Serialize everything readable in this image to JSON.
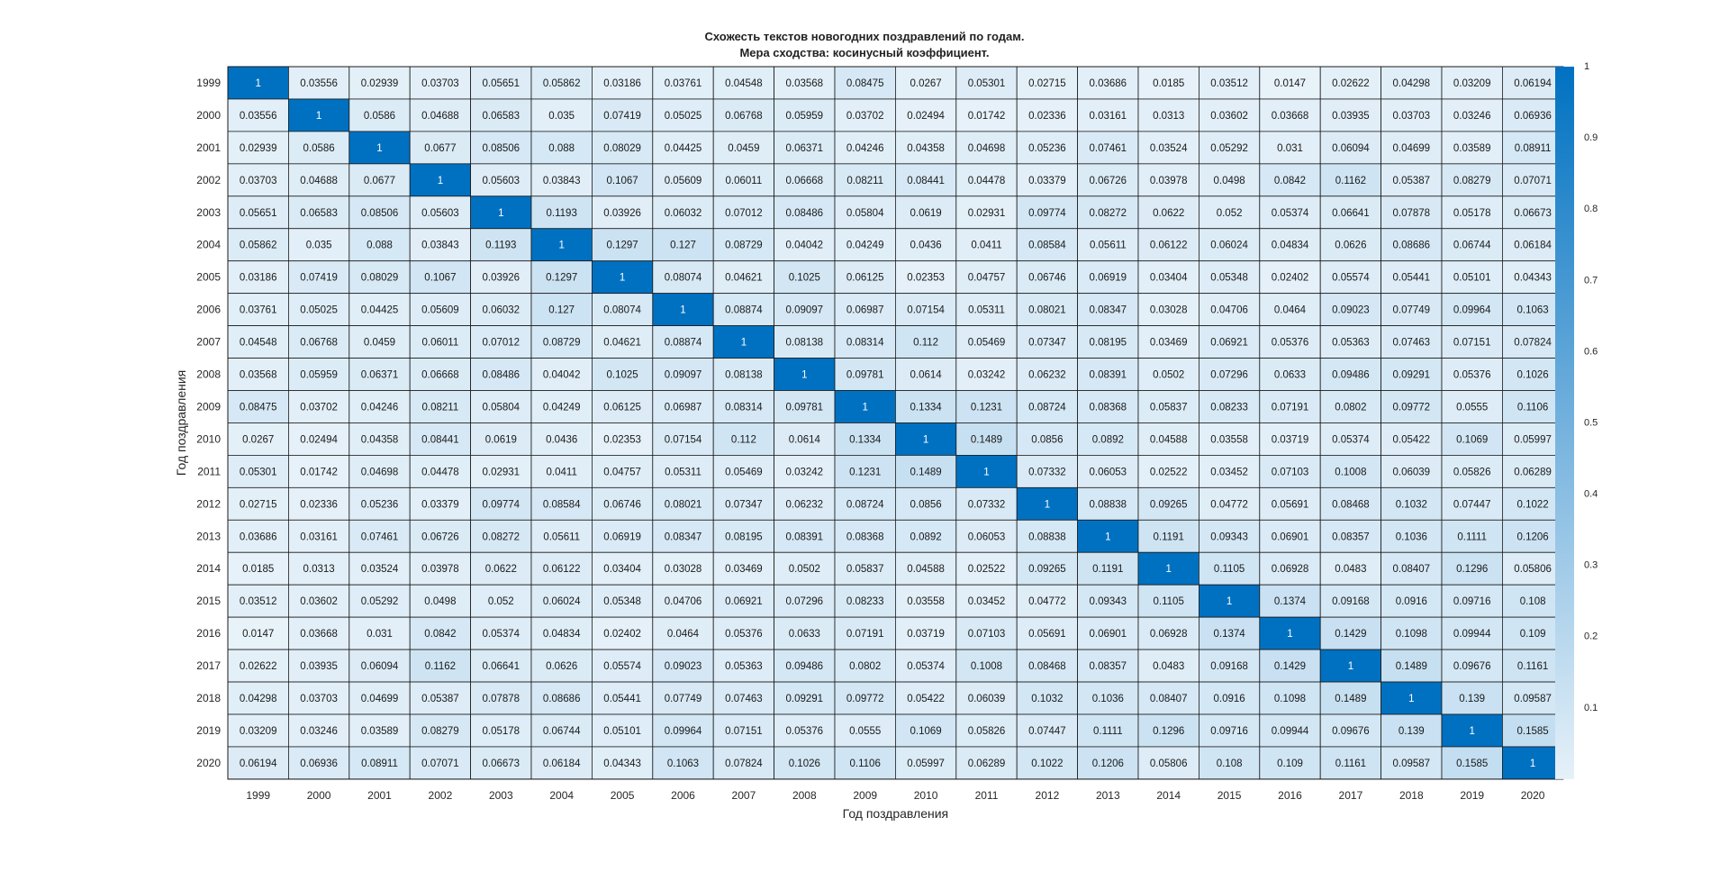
{
  "chart_data": {
    "type": "heatmap",
    "title": "Схожесть текстов новогодних поздравлений по годам.",
    "subtitle": "Мера сходства: косинусный коэффициент.",
    "xlabel": "Год поздравления",
    "ylabel": "Год поздравления",
    "colormap": {
      "low": "#ffffff",
      "high": "#0071c1"
    },
    "grid": true,
    "colorbar": {
      "ticks": [
        0.1,
        0.2,
        0.3,
        0.4,
        0.5,
        0.6,
        0.7,
        0.8,
        0.9,
        1
      ],
      "tick_labels": [
        "0.1",
        "0.2",
        "0.3",
        "0.4",
        "0.5",
        "0.6",
        "0.7",
        "0.8",
        "0.9",
        "1"
      ],
      "range": [
        0,
        1
      ],
      "placement": "right"
    },
    "x": [
      "1999",
      "2000",
      "2001",
      "2002",
      "2003",
      "2004",
      "2005",
      "2006",
      "2007",
      "2008",
      "2009",
      "2010",
      "2011",
      "2012",
      "2013",
      "2014",
      "2015",
      "2016",
      "2017",
      "2018",
      "2019",
      "2020"
    ],
    "y": [
      "1999",
      "2000",
      "2001",
      "2002",
      "2003",
      "2004",
      "2005",
      "2006",
      "2007",
      "2008",
      "2009",
      "2010",
      "2011",
      "2012",
      "2013",
      "2014",
      "2015",
      "2016",
      "2017",
      "2018",
      "2019",
      "2020"
    ],
    "values": [
      [
        "1",
        "0.03556",
        "0.02939",
        "0.03703",
        "0.05651",
        "0.05862",
        "0.03186",
        "0.03761",
        "0.04548",
        "0.03568",
        "0.08475",
        "0.0267",
        "0.05301",
        "0.02715",
        "0.03686",
        "0.0185",
        "0.03512",
        "0.0147",
        "0.02622",
        "0.04298",
        "0.03209",
        "0.06194"
      ],
      [
        "0.03556",
        "1",
        "0.0586",
        "0.04688",
        "0.06583",
        "0.035",
        "0.07419",
        "0.05025",
        "0.06768",
        "0.05959",
        "0.03702",
        "0.02494",
        "0.01742",
        "0.02336",
        "0.03161",
        "0.0313",
        "0.03602",
        "0.03668",
        "0.03935",
        "0.03703",
        "0.03246",
        "0.06936"
      ],
      [
        "0.02939",
        "0.0586",
        "1",
        "0.0677",
        "0.08506",
        "0.088",
        "0.08029",
        "0.04425",
        "0.0459",
        "0.06371",
        "0.04246",
        "0.04358",
        "0.04698",
        "0.05236",
        "0.07461",
        "0.03524",
        "0.05292",
        "0.031",
        "0.06094",
        "0.04699",
        "0.03589",
        "0.08911"
      ],
      [
        "0.03703",
        "0.04688",
        "0.0677",
        "1",
        "0.05603",
        "0.03843",
        "0.1067",
        "0.05609",
        "0.06011",
        "0.06668",
        "0.08211",
        "0.08441",
        "0.04478",
        "0.03379",
        "0.06726",
        "0.03978",
        "0.0498",
        "0.0842",
        "0.1162",
        "0.05387",
        "0.08279",
        "0.07071"
      ],
      [
        "0.05651",
        "0.06583",
        "0.08506",
        "0.05603",
        "1",
        "0.1193",
        "0.03926",
        "0.06032",
        "0.07012",
        "0.08486",
        "0.05804",
        "0.0619",
        "0.02931",
        "0.09774",
        "0.08272",
        "0.0622",
        "0.052",
        "0.05374",
        "0.06641",
        "0.07878",
        "0.05178",
        "0.06673"
      ],
      [
        "0.05862",
        "0.035",
        "0.088",
        "0.03843",
        "0.1193",
        "1",
        "0.1297",
        "0.127",
        "0.08729",
        "0.04042",
        "0.04249",
        "0.0436",
        "0.0411",
        "0.08584",
        "0.05611",
        "0.06122",
        "0.06024",
        "0.04834",
        "0.0626",
        "0.08686",
        "0.06744",
        "0.06184"
      ],
      [
        "0.03186",
        "0.07419",
        "0.08029",
        "0.1067",
        "0.03926",
        "0.1297",
        "1",
        "0.08074",
        "0.04621",
        "0.1025",
        "0.06125",
        "0.02353",
        "0.04757",
        "0.06746",
        "0.06919",
        "0.03404",
        "0.05348",
        "0.02402",
        "0.05574",
        "0.05441",
        "0.05101",
        "0.04343"
      ],
      [
        "0.03761",
        "0.05025",
        "0.04425",
        "0.05609",
        "0.06032",
        "0.127",
        "0.08074",
        "1",
        "0.08874",
        "0.09097",
        "0.06987",
        "0.07154",
        "0.05311",
        "0.08021",
        "0.08347",
        "0.03028",
        "0.04706",
        "0.0464",
        "0.09023",
        "0.07749",
        "0.09964",
        "0.1063"
      ],
      [
        "0.04548",
        "0.06768",
        "0.0459",
        "0.06011",
        "0.07012",
        "0.08729",
        "0.04621",
        "0.08874",
        "1",
        "0.08138",
        "0.08314",
        "0.112",
        "0.05469",
        "0.07347",
        "0.08195",
        "0.03469",
        "0.06921",
        "0.05376",
        "0.05363",
        "0.07463",
        "0.07151",
        "0.07824"
      ],
      [
        "0.03568",
        "0.05959",
        "0.06371",
        "0.06668",
        "0.08486",
        "0.04042",
        "0.1025",
        "0.09097",
        "0.08138",
        "1",
        "0.09781",
        "0.0614",
        "0.03242",
        "0.06232",
        "0.08391",
        "0.0502",
        "0.07296",
        "0.0633",
        "0.09486",
        "0.09291",
        "0.05376",
        "0.1026"
      ],
      [
        "0.08475",
        "0.03702",
        "0.04246",
        "0.08211",
        "0.05804",
        "0.04249",
        "0.06125",
        "0.06987",
        "0.08314",
        "0.09781",
        "1",
        "0.1334",
        "0.1231",
        "0.08724",
        "0.08368",
        "0.05837",
        "0.08233",
        "0.07191",
        "0.0802",
        "0.09772",
        "0.0555",
        "0.1106"
      ],
      [
        "0.0267",
        "0.02494",
        "0.04358",
        "0.08441",
        "0.0619",
        "0.0436",
        "0.02353",
        "0.07154",
        "0.112",
        "0.0614",
        "0.1334",
        "1",
        "0.1489",
        "0.0856",
        "0.0892",
        "0.04588",
        "0.03558",
        "0.03719",
        "0.05374",
        "0.05422",
        "0.1069",
        "0.05997"
      ],
      [
        "0.05301",
        "0.01742",
        "0.04698",
        "0.04478",
        "0.02931",
        "0.0411",
        "0.04757",
        "0.05311",
        "0.05469",
        "0.03242",
        "0.1231",
        "0.1489",
        "1",
        "0.07332",
        "0.06053",
        "0.02522",
        "0.03452",
        "0.07103",
        "0.1008",
        "0.06039",
        "0.05826",
        "0.06289"
      ],
      [
        "0.02715",
        "0.02336",
        "0.05236",
        "0.03379",
        "0.09774",
        "0.08584",
        "0.06746",
        "0.08021",
        "0.07347",
        "0.06232",
        "0.08724",
        "0.0856",
        "0.07332",
        "1",
        "0.08838",
        "0.09265",
        "0.04772",
        "0.05691",
        "0.08468",
        "0.1032",
        "0.07447",
        "0.1022"
      ],
      [
        "0.03686",
        "0.03161",
        "0.07461",
        "0.06726",
        "0.08272",
        "0.05611",
        "0.06919",
        "0.08347",
        "0.08195",
        "0.08391",
        "0.08368",
        "0.0892",
        "0.06053",
        "0.08838",
        "1",
        "0.1191",
        "0.09343",
        "0.06901",
        "0.08357",
        "0.1036",
        "0.1111",
        "0.1206"
      ],
      [
        "0.0185",
        "0.0313",
        "0.03524",
        "0.03978",
        "0.0622",
        "0.06122",
        "0.03404",
        "0.03028",
        "0.03469",
        "0.0502",
        "0.05837",
        "0.04588",
        "0.02522",
        "0.09265",
        "0.1191",
        "1",
        "0.1105",
        "0.06928",
        "0.0483",
        "0.08407",
        "0.1296",
        "0.05806"
      ],
      [
        "0.03512",
        "0.03602",
        "0.05292",
        "0.0498",
        "0.052",
        "0.06024",
        "0.05348",
        "0.04706",
        "0.06921",
        "0.07296",
        "0.08233",
        "0.03558",
        "0.03452",
        "0.04772",
        "0.09343",
        "0.1105",
        "1",
        "0.1374",
        "0.09168",
        "0.0916",
        "0.09716",
        "0.108"
      ],
      [
        "0.0147",
        "0.03668",
        "0.031",
        "0.0842",
        "0.05374",
        "0.04834",
        "0.02402",
        "0.0464",
        "0.05376",
        "0.0633",
        "0.07191",
        "0.03719",
        "0.07103",
        "0.05691",
        "0.06901",
        "0.06928",
        "0.1374",
        "1",
        "0.1429",
        "0.1098",
        "0.09944",
        "0.109"
      ],
      [
        "0.02622",
        "0.03935",
        "0.06094",
        "0.1162",
        "0.06641",
        "0.0626",
        "0.05574",
        "0.09023",
        "0.05363",
        "0.09486",
        "0.0802",
        "0.05374",
        "0.1008",
        "0.08468",
        "0.08357",
        "0.0483",
        "0.09168",
        "0.1429",
        "1",
        "0.1489",
        "0.09676",
        "0.1161"
      ],
      [
        "0.04298",
        "0.03703",
        "0.04699",
        "0.05387",
        "0.07878",
        "0.08686",
        "0.05441",
        "0.07749",
        "0.07463",
        "0.09291",
        "0.09772",
        "0.05422",
        "0.06039",
        "0.1032",
        "0.1036",
        "0.08407",
        "0.0916",
        "0.1098",
        "0.1489",
        "1",
        "0.139",
        "0.09587"
      ],
      [
        "0.03209",
        "0.03246",
        "0.03589",
        "0.08279",
        "0.05178",
        "0.06744",
        "0.05101",
        "0.09964",
        "0.07151",
        "0.05376",
        "0.0555",
        "0.1069",
        "0.05826",
        "0.07447",
        "0.1111",
        "0.1296",
        "0.09716",
        "0.09944",
        "0.09676",
        "0.139",
        "1",
        "0.1585"
      ],
      [
        "0.06194",
        "0.06936",
        "0.08911",
        "0.07071",
        "0.06673",
        "0.06184",
        "0.04343",
        "0.1063",
        "0.07824",
        "0.1026",
        "0.1106",
        "0.05997",
        "0.06289",
        "0.1022",
        "0.1206",
        "0.05806",
        "0.108",
        "0.109",
        "0.1161",
        "0.09587",
        "0.1585",
        "1"
      ]
    ]
  }
}
